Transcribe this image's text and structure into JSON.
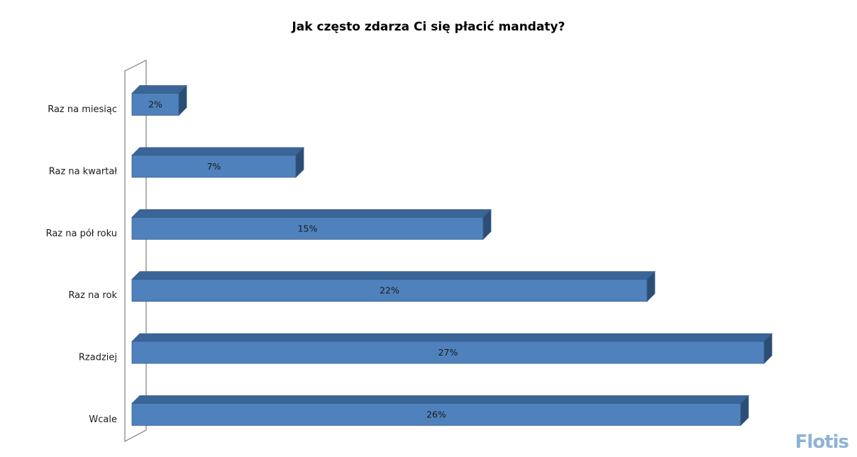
{
  "chart_data": {
    "type": "bar",
    "orientation": "horizontal",
    "title": "Jak często zdarza Ci się płacić mandaty?",
    "categories": [
      "Raz na miesiąc",
      "Raz na kwartał",
      "Raz na pół roku",
      "Raz na rok",
      "Rzadziej",
      "Wcale"
    ],
    "values": [
      2,
      7,
      15,
      22,
      27,
      26
    ],
    "data_labels": [
      "2%",
      "7%",
      "15%",
      "22%",
      "27%",
      "26%"
    ],
    "value_unit": "%",
    "xlim": [
      0,
      28
    ],
    "grid": false,
    "legend": "none",
    "colors": {
      "bar_front": "#4f81bd",
      "bar_top": "#3a6597",
      "bar_side": "#2c4d74",
      "bar_outline": "#385d8a",
      "wall_stroke": "#7f7f7f"
    }
  },
  "watermark": "Flotis"
}
